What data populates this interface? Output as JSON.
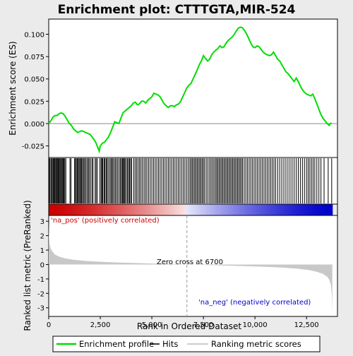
{
  "chart_data": {
    "type": "line",
    "title": "Enrichment plot: CTTTGTA,MIR-524",
    "xlabel": "Rank in Ordered Dataset",
    "es_panel": {
      "ylabel": "Enrichment score (ES)",
      "ylim": [
        -0.038,
        0.117
      ],
      "yticks": [
        -0.025,
        0.0,
        0.025,
        0.05,
        0.075,
        0.1
      ],
      "ytick_labels": [
        "-0.025",
        "0.000",
        "0.025",
        "0.050",
        "0.075",
        "0.100"
      ],
      "line_color": "#00dd00",
      "series_name": "Enrichment profile",
      "points": [
        [
          0,
          0
        ],
        [
          100,
          0.003
        ],
        [
          200,
          0.007
        ],
        [
          300,
          0.009
        ],
        [
          400,
          0.009
        ],
        [
          500,
          0.011
        ],
        [
          600,
          0.012
        ],
        [
          700,
          0.011
        ],
        [
          800,
          0.008
        ],
        [
          900,
          0.004
        ],
        [
          1000,
          0.0
        ],
        [
          1100,
          -0.002
        ],
        [
          1200,
          -0.006
        ],
        [
          1300,
          -0.008
        ],
        [
          1400,
          -0.01
        ],
        [
          1500,
          -0.009
        ],
        [
          1600,
          -0.008
        ],
        [
          1700,
          -0.009
        ],
        [
          1800,
          -0.01
        ],
        [
          1900,
          -0.011
        ],
        [
          2000,
          -0.012
        ],
        [
          2100,
          -0.015
        ],
        [
          2200,
          -0.018
        ],
        [
          2300,
          -0.022
        ],
        [
          2400,
          -0.028
        ],
        [
          2450,
          -0.031
        ],
        [
          2500,
          -0.025
        ],
        [
          2600,
          -0.022
        ],
        [
          2700,
          -0.021
        ],
        [
          2800,
          -0.018
        ],
        [
          2900,
          -0.015
        ],
        [
          3000,
          -0.01
        ],
        [
          3100,
          -0.004
        ],
        [
          3200,
          0.002
        ],
        [
          3300,
          0.001
        ],
        [
          3400,
          0.0
        ],
        [
          3500,
          0.006
        ],
        [
          3600,
          0.012
        ],
        [
          3700,
          0.014
        ],
        [
          3800,
          0.016
        ],
        [
          3900,
          0.018
        ],
        [
          4000,
          0.02
        ],
        [
          4100,
          0.023
        ],
        [
          4200,
          0.024
        ],
        [
          4300,
          0.021
        ],
        [
          4400,
          0.022
        ],
        [
          4500,
          0.025
        ],
        [
          4600,
          0.025
        ],
        [
          4700,
          0.023
        ],
        [
          4800,
          0.026
        ],
        [
          4900,
          0.028
        ],
        [
          5000,
          0.03
        ],
        [
          5100,
          0.034
        ],
        [
          5200,
          0.033
        ],
        [
          5300,
          0.032
        ],
        [
          5400,
          0.03
        ],
        [
          5500,
          0.026
        ],
        [
          5600,
          0.022
        ],
        [
          5700,
          0.02
        ],
        [
          5800,
          0.018
        ],
        [
          5900,
          0.02
        ],
        [
          6000,
          0.02
        ],
        [
          6100,
          0.019
        ],
        [
          6200,
          0.021
        ],
        [
          6300,
          0.022
        ],
        [
          6400,
          0.025
        ],
        [
          6500,
          0.03
        ],
        [
          6600,
          0.035
        ],
        [
          6700,
          0.04
        ],
        [
          6800,
          0.043
        ],
        [
          6900,
          0.045
        ],
        [
          7000,
          0.05
        ],
        [
          7100,
          0.055
        ],
        [
          7200,
          0.06
        ],
        [
          7300,
          0.066
        ],
        [
          7400,
          0.07
        ],
        [
          7500,
          0.076
        ],
        [
          7600,
          0.073
        ],
        [
          7700,
          0.07
        ],
        [
          7800,
          0.072
        ],
        [
          7900,
          0.077
        ],
        [
          8000,
          0.08
        ],
        [
          8100,
          0.082
        ],
        [
          8200,
          0.084
        ],
        [
          8300,
          0.087
        ],
        [
          8400,
          0.085
        ],
        [
          8500,
          0.086
        ],
        [
          8600,
          0.09
        ],
        [
          8700,
          0.093
        ],
        [
          8800,
          0.095
        ],
        [
          8900,
          0.097
        ],
        [
          9000,
          0.1
        ],
        [
          9100,
          0.104
        ],
        [
          9200,
          0.107
        ],
        [
          9300,
          0.108
        ],
        [
          9400,
          0.107
        ],
        [
          9500,
          0.104
        ],
        [
          9600,
          0.1
        ],
        [
          9700,
          0.095
        ],
        [
          9800,
          0.09
        ],
        [
          9900,
          0.086
        ],
        [
          10000,
          0.085
        ],
        [
          10100,
          0.087
        ],
        [
          10200,
          0.086
        ],
        [
          10300,
          0.083
        ],
        [
          10400,
          0.08
        ],
        [
          10500,
          0.078
        ],
        [
          10600,
          0.077
        ],
        [
          10700,
          0.076
        ],
        [
          10800,
          0.077
        ],
        [
          10900,
          0.08
        ],
        [
          11000,
          0.076
        ],
        [
          11100,
          0.072
        ],
        [
          11200,
          0.07
        ],
        [
          11300,
          0.066
        ],
        [
          11400,
          0.062
        ],
        [
          11500,
          0.058
        ],
        [
          11600,
          0.056
        ],
        [
          11700,
          0.053
        ],
        [
          11800,
          0.05
        ],
        [
          11900,
          0.047
        ],
        [
          12000,
          0.051
        ],
        [
          12100,
          0.047
        ],
        [
          12200,
          0.042
        ],
        [
          12300,
          0.038
        ],
        [
          12400,
          0.035
        ],
        [
          12500,
          0.033
        ],
        [
          12600,
          0.032
        ],
        [
          12700,
          0.031
        ],
        [
          12800,
          0.033
        ],
        [
          12900,
          0.028
        ],
        [
          13000,
          0.022
        ],
        [
          13100,
          0.016
        ],
        [
          13200,
          0.01
        ],
        [
          13300,
          0.006
        ],
        [
          13400,
          0.003
        ],
        [
          13500,
          0.0
        ],
        [
          13600,
          -0.002
        ],
        [
          13700,
          0.001
        ]
      ]
    },
    "hits_panel": {
      "series_name": "Hits",
      "hit_ranks": [
        20,
        60,
        110,
        150,
        200,
        240,
        270,
        310,
        350,
        390,
        420,
        460,
        500,
        540,
        580,
        620,
        660,
        700,
        740,
        780,
        830,
        1030,
        1080,
        1250,
        1300,
        1330,
        1380,
        1420,
        1470,
        1510,
        1560,
        1600,
        1640,
        1700,
        1740,
        1800,
        1860,
        1920,
        1960,
        2030,
        2100,
        2150,
        2250,
        2300,
        2360,
        2480,
        2540,
        2580,
        2620,
        2680,
        2720,
        2780,
        2820,
        2880,
        2950,
        3010,
        3060,
        3110,
        3170,
        3230,
        3290,
        3350,
        3420,
        3480,
        3530,
        3580,
        3620,
        3660,
        3700,
        3760,
        3820,
        3870,
        3920,
        3970,
        4020,
        4120,
        4190,
        4260,
        4330,
        4400,
        4470,
        4540,
        4620,
        4690,
        4760,
        4840,
        4920,
        5000,
        5080,
        5160,
        5240,
        5320,
        5400,
        5480,
        5560,
        5640,
        5720,
        5800,
        5880,
        5960,
        6040,
        6120,
        6200,
        6280,
        6360,
        6440,
        6520,
        6600,
        6680,
        6760,
        6840,
        6900,
        6960,
        7020,
        7080,
        7140,
        7200,
        7260,
        7320,
        7380,
        7440,
        7500,
        7560,
        7640,
        7720,
        7800,
        7870,
        7940,
        8010,
        8080,
        8140,
        8200,
        8260,
        8320,
        8380,
        8440,
        8500,
        8560,
        8620,
        8680,
        8740,
        8800,
        8860,
        8920,
        8980,
        9040,
        9100,
        9160,
        9220,
        9280,
        9340,
        9400,
        9480,
        9560,
        9640,
        9720,
        9800,
        9880,
        9960,
        10040,
        10120,
        10200,
        10280,
        10360,
        10440,
        10520,
        10600,
        10680,
        10760,
        10840,
        10920,
        11000,
        11100,
        11200,
        11300,
        11400,
        11500,
        11600,
        11700,
        11800,
        11900,
        12000,
        12100,
        12200,
        12300,
        12400,
        12500,
        12580,
        12660,
        12740,
        12820,
        12900,
        13000,
        13100,
        13200,
        13350,
        13550,
        13720
      ]
    },
    "rank_panel": {
      "ylabel": "Ranked list metric (PreRanked)",
      "ylim": [
        -3.6,
        3.4
      ],
      "yticks": [
        -3,
        -2,
        -1,
        0,
        1,
        2,
        3
      ],
      "ytick_labels": [
        "-3",
        "-2",
        "-1",
        "0",
        "1",
        "2",
        "3"
      ],
      "series_name": "Ranking metric scores",
      "fill_color": "#c8c8c8",
      "metric_points": [
        [
          0,
          2.8
        ],
        [
          15,
          2.0
        ],
        [
          40,
          1.5
        ],
        [
          80,
          1.2
        ],
        [
          150,
          0.95
        ],
        [
          300,
          0.7
        ],
        [
          500,
          0.55
        ],
        [
          800,
          0.42
        ],
        [
          1200,
          0.33
        ],
        [
          1800,
          0.25
        ],
        [
          2500,
          0.19
        ],
        [
          3300,
          0.14
        ],
        [
          4200,
          0.1
        ],
        [
          5200,
          0.06
        ],
        [
          6000,
          0.03
        ],
        [
          6700,
          0.0
        ],
        [
          7500,
          -0.03
        ],
        [
          8500,
          -0.07
        ],
        [
          9500,
          -0.11
        ],
        [
          10500,
          -0.16
        ],
        [
          11300,
          -0.21
        ],
        [
          12000,
          -0.28
        ],
        [
          12600,
          -0.38
        ],
        [
          13000,
          -0.5
        ],
        [
          13300,
          -0.65
        ],
        [
          13500,
          -0.85
        ],
        [
          13600,
          -1.05
        ],
        [
          13680,
          -1.4
        ],
        [
          13730,
          -2.2
        ],
        [
          13750,
          -3.4
        ]
      ],
      "zero_cross_rank": 6700,
      "zero_cross_label": "Zero cross at 6700",
      "pos_label": "'na_pos' (positively correlated)",
      "neg_label": "'na_neg' (negatively correlated)",
      "pos_color": "#cc0000",
      "neg_color": "#0000cc"
    },
    "x_axis": {
      "xlim": [
        0,
        14000
      ],
      "max_rank": 13750,
      "xticks": [
        0,
        2500,
        5000,
        7500,
        10000,
        12500
      ],
      "xtick_labels": [
        "0",
        "2,500",
        "5,000",
        "7,500",
        "10,000",
        "12,500"
      ]
    },
    "legend": {
      "placement": "bottom",
      "items": [
        {
          "label": "Enrichment profile",
          "color": "#00dd00",
          "kind": "line"
        },
        {
          "label": "Hits",
          "color": "#000000",
          "kind": "line"
        },
        {
          "label": "Ranking metric scores",
          "color": "#bbbbbb",
          "kind": "line"
        }
      ]
    }
  }
}
